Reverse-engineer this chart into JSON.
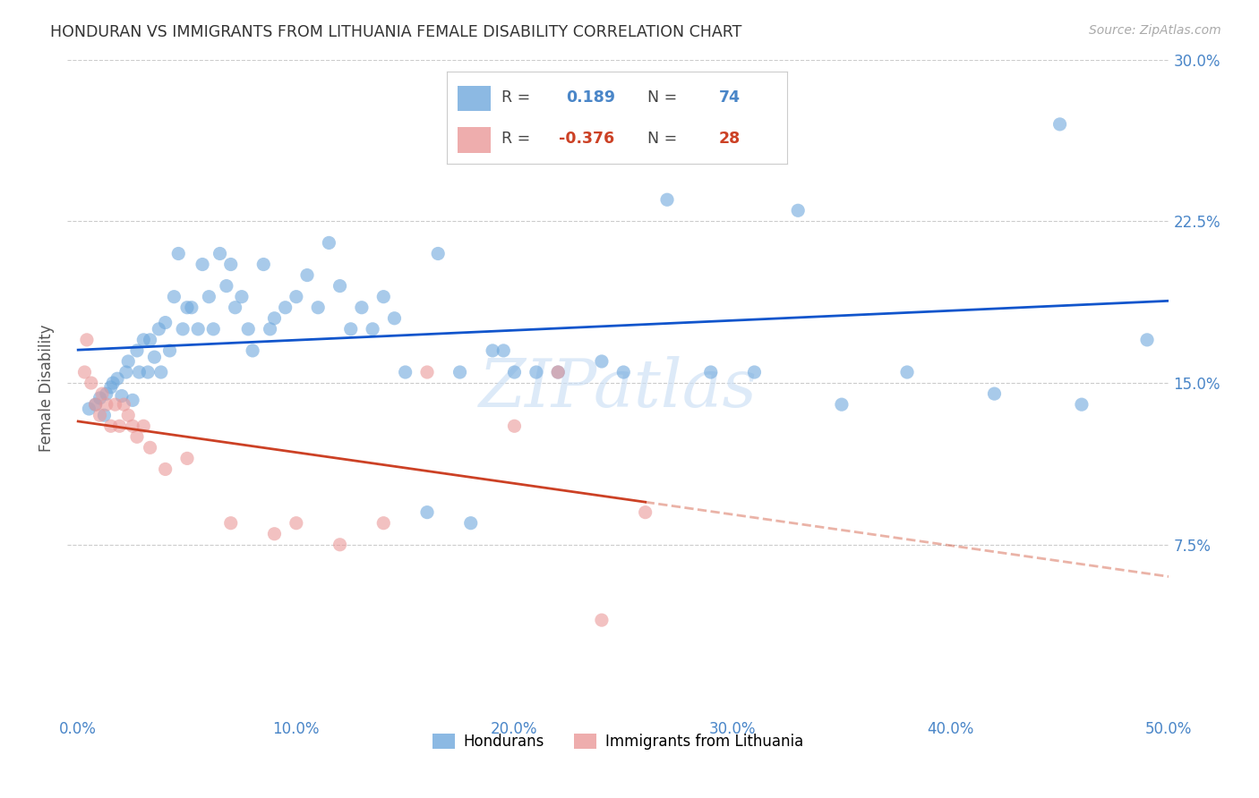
{
  "title": "HONDURAN VS IMMIGRANTS FROM LITHUANIA FEMALE DISABILITY CORRELATION CHART",
  "source": "Source: ZipAtlas.com",
  "ylabel": "Female Disability",
  "watermark": "ZIPatlas",
  "legend1_label": "Hondurans",
  "legend2_label": "Immigrants from Lithuania",
  "R1": 0.189,
  "N1": 74,
  "R2": -0.376,
  "N2": 28,
  "xlim": [
    -0.005,
    0.5
  ],
  "ylim": [
    -0.005,
    0.3
  ],
  "xticks": [
    0.0,
    0.1,
    0.2,
    0.3,
    0.4,
    0.5
  ],
  "xticklabels": [
    "0.0%",
    "10.0%",
    "20.0%",
    "30.0%",
    "40.0%",
    "50.0%"
  ],
  "yticks_right": [
    0.0,
    0.075,
    0.15,
    0.225,
    0.3
  ],
  "yticklabels_right": [
    "",
    "7.5%",
    "15.0%",
    "22.5%",
    "30.0%"
  ],
  "color_blue": "#6fa8dc",
  "color_pink": "#ea9999",
  "color_line_blue": "#1155cc",
  "color_line_pink": "#cc4125",
  "blue_x": [
    0.005,
    0.008,
    0.01,
    0.012,
    0.013,
    0.015,
    0.016,
    0.018,
    0.02,
    0.022,
    0.023,
    0.025,
    0.027,
    0.028,
    0.03,
    0.032,
    0.033,
    0.035,
    0.037,
    0.038,
    0.04,
    0.042,
    0.044,
    0.046,
    0.048,
    0.05,
    0.052,
    0.055,
    0.057,
    0.06,
    0.062,
    0.065,
    0.068,
    0.07,
    0.072,
    0.075,
    0.078,
    0.08,
    0.085,
    0.088,
    0.09,
    0.095,
    0.1,
    0.105,
    0.11,
    0.115,
    0.12,
    0.125,
    0.13,
    0.135,
    0.14,
    0.145,
    0.15,
    0.16,
    0.165,
    0.175,
    0.18,
    0.19,
    0.195,
    0.2,
    0.21,
    0.22,
    0.24,
    0.25,
    0.27,
    0.29,
    0.31,
    0.33,
    0.35,
    0.38,
    0.42,
    0.45,
    0.46,
    0.49
  ],
  "blue_y": [
    0.138,
    0.14,
    0.143,
    0.135,
    0.145,
    0.148,
    0.15,
    0.152,
    0.144,
    0.155,
    0.16,
    0.142,
    0.165,
    0.155,
    0.17,
    0.155,
    0.17,
    0.162,
    0.175,
    0.155,
    0.178,
    0.165,
    0.19,
    0.21,
    0.175,
    0.185,
    0.185,
    0.175,
    0.205,
    0.19,
    0.175,
    0.21,
    0.195,
    0.205,
    0.185,
    0.19,
    0.175,
    0.165,
    0.205,
    0.175,
    0.18,
    0.185,
    0.19,
    0.2,
    0.185,
    0.215,
    0.195,
    0.175,
    0.185,
    0.175,
    0.19,
    0.18,
    0.155,
    0.09,
    0.21,
    0.155,
    0.085,
    0.165,
    0.165,
    0.155,
    0.155,
    0.155,
    0.16,
    0.155,
    0.235,
    0.155,
    0.155,
    0.23,
    0.14,
    0.155,
    0.145,
    0.27,
    0.14,
    0.17
  ],
  "pink_x": [
    0.003,
    0.006,
    0.008,
    0.01,
    0.011,
    0.013,
    0.015,
    0.017,
    0.019,
    0.021,
    0.023,
    0.025,
    0.027,
    0.03,
    0.033,
    0.04,
    0.05,
    0.07,
    0.09,
    0.1,
    0.12,
    0.14,
    0.16,
    0.2,
    0.22,
    0.24,
    0.26,
    0.004
  ],
  "pink_y": [
    0.155,
    0.15,
    0.14,
    0.135,
    0.145,
    0.14,
    0.13,
    0.14,
    0.13,
    0.14,
    0.135,
    0.13,
    0.125,
    0.13,
    0.12,
    0.11,
    0.115,
    0.085,
    0.08,
    0.085,
    0.075,
    0.085,
    0.155,
    0.13,
    0.155,
    0.04,
    0.09,
    0.17
  ]
}
